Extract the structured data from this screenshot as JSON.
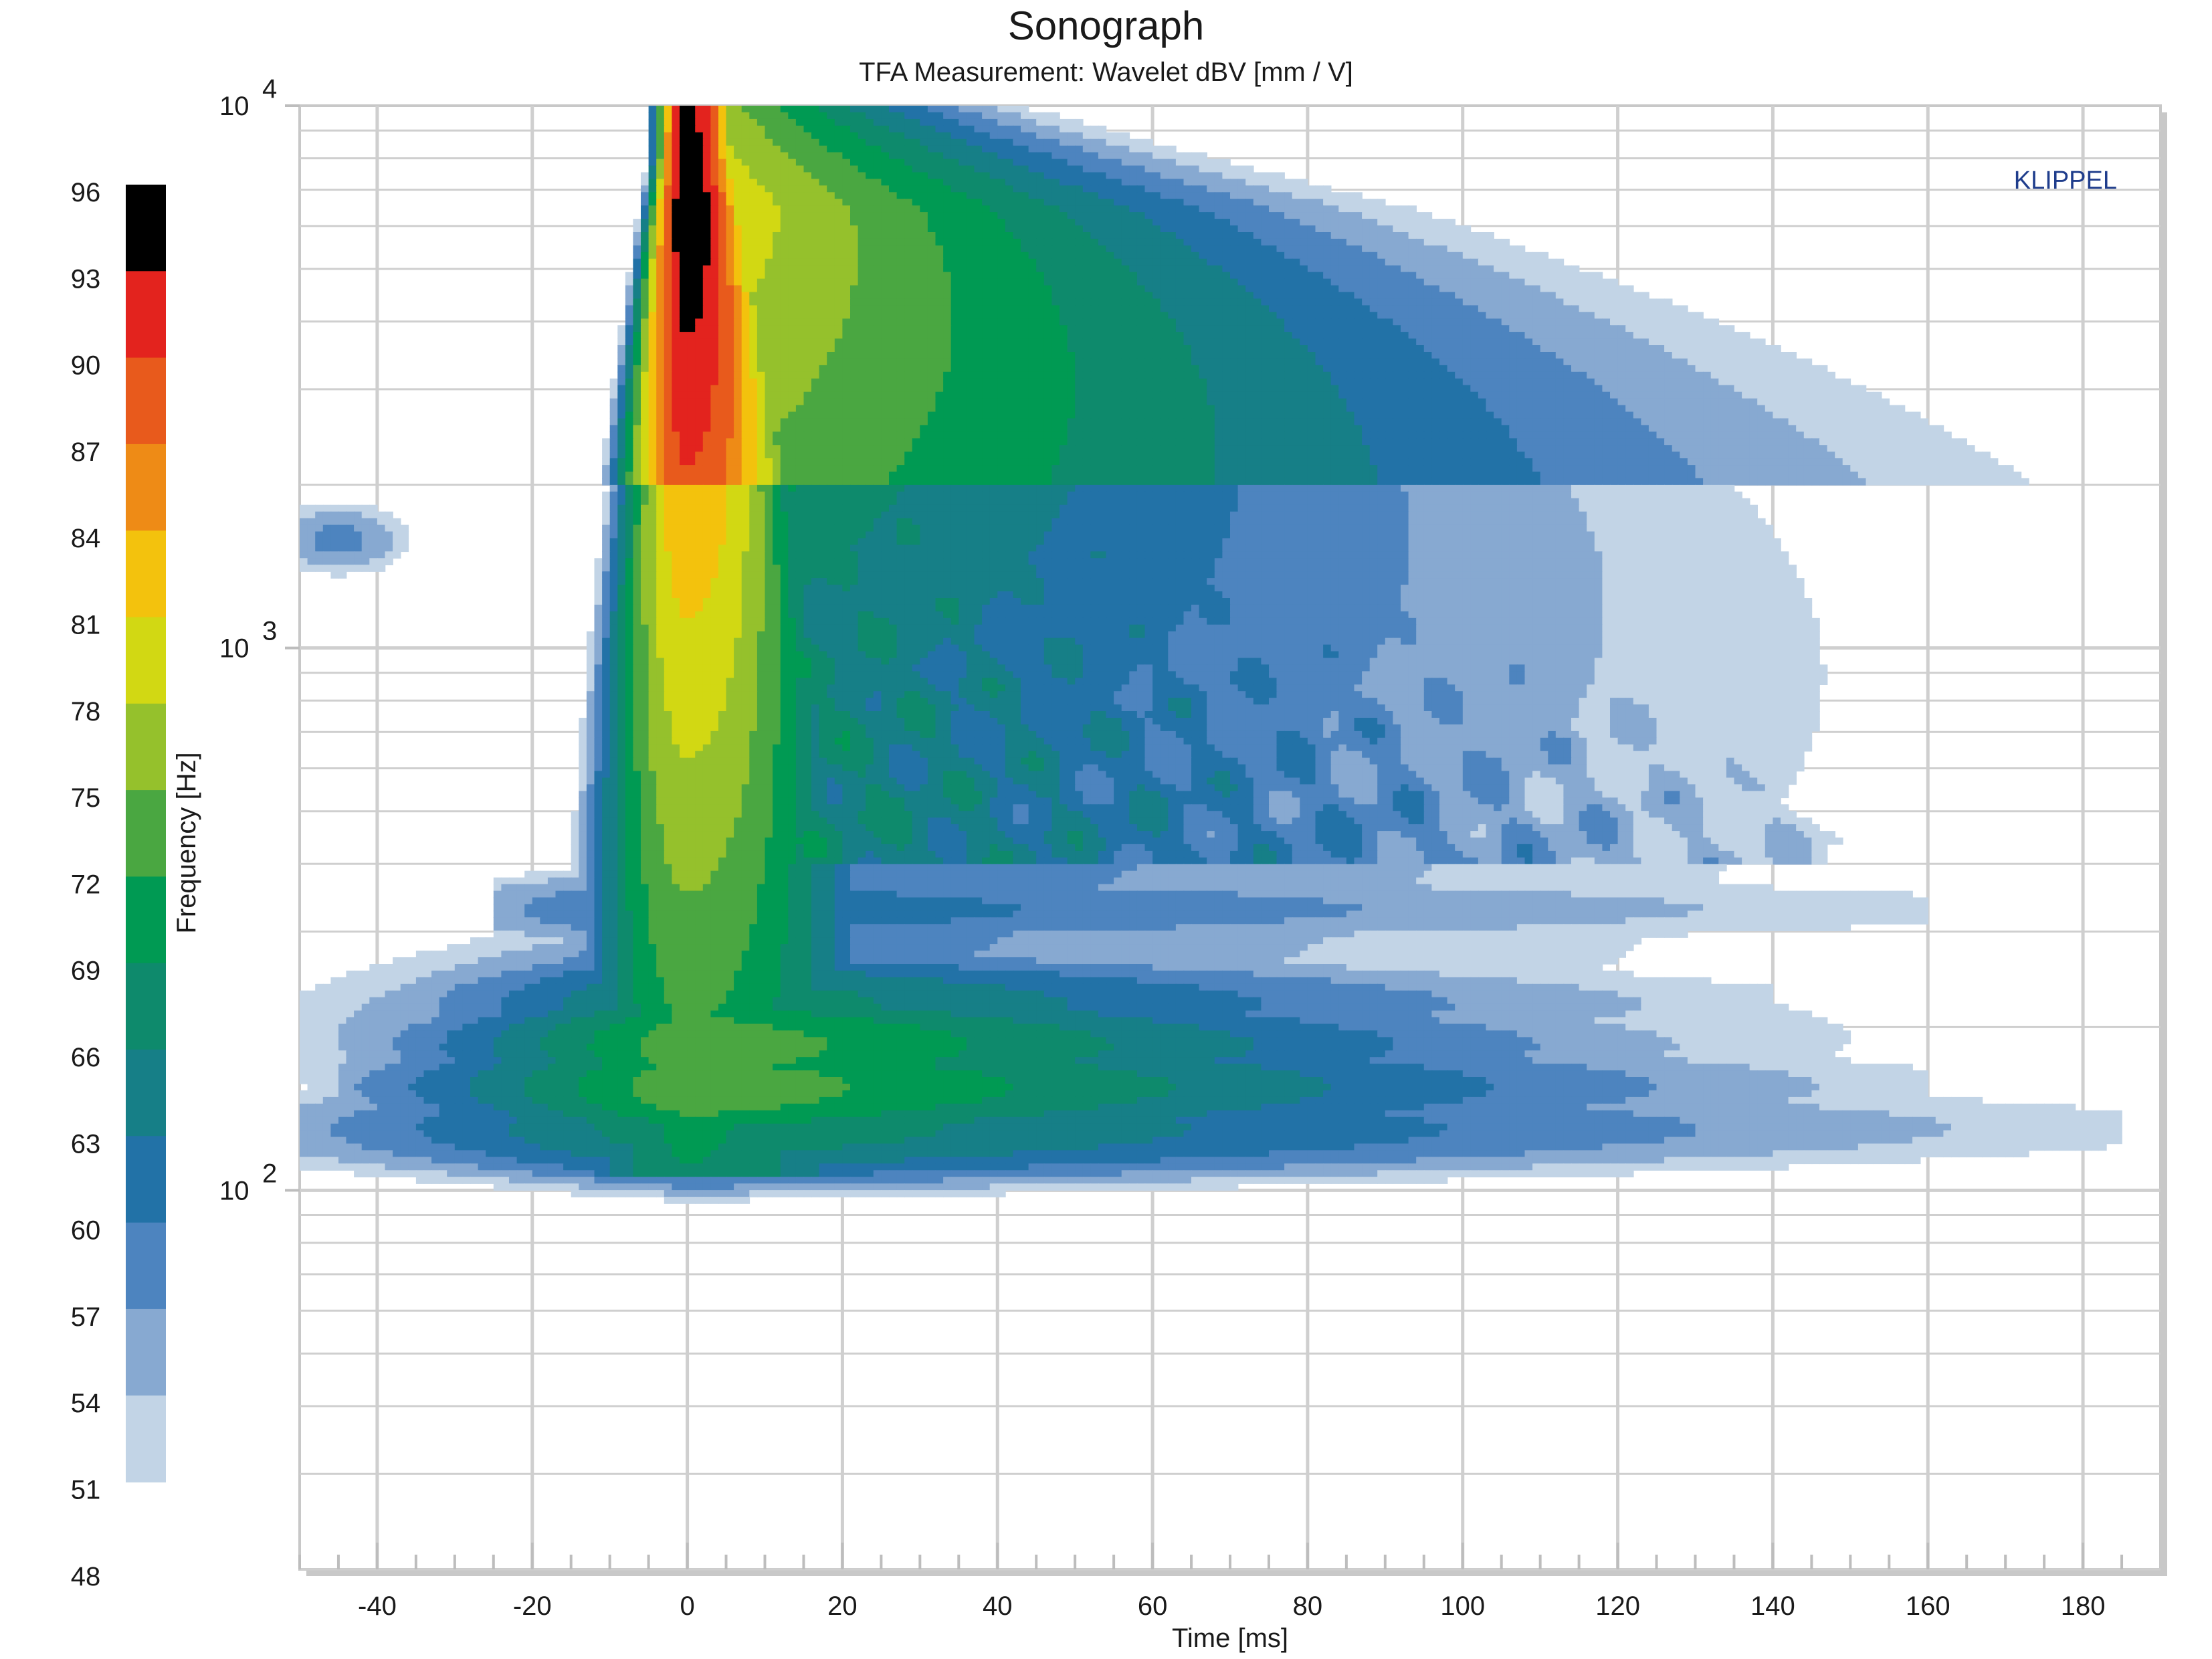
{
  "chart_data": {
    "type": "heatmap",
    "title": "Sonograph",
    "subtitle": "TFA Measurement: Wavelet dBV [mm / V]",
    "xlabel": "Time [ms]",
    "ylabel": "Frequency [Hz]",
    "xlim": [
      -50,
      190
    ],
    "ylim": [
      20,
      10000
    ],
    "y_scale": "log",
    "grid": true,
    "x_ticks": [
      "-40",
      "-20",
      "0",
      "20",
      "40",
      "60",
      "80",
      "100",
      "120",
      "140",
      "160",
      "180"
    ],
    "y_tick_labels": [
      {
        "base": "10",
        "exp": "4",
        "value": 10000
      },
      {
        "base": "10",
        "exp": "3",
        "value": 1000
      },
      {
        "base": "10",
        "exp": "2",
        "value": 100
      }
    ],
    "colorbar": {
      "labels": [
        "96",
        "93",
        "90",
        "87",
        "84",
        "81",
        "78",
        "75",
        "72",
        "69",
        "66",
        "63",
        "60",
        "57",
        "54",
        "51",
        "48"
      ],
      "colors": [
        "#000000",
        "#e3231e",
        "#e85a1c",
        "#ee8b16",
        "#f3c20d",
        "#d2d813",
        "#95c12c",
        "#4aa741",
        "#009a53",
        "#0e8a6c",
        "#167f87",
        "#2272a7",
        "#4d84bf",
        "#87a9d1",
        "#c2d4e6"
      ],
      "placement": "left"
    },
    "ridges": [
      {
        "freq_hz": 130,
        "t_start_ms": -50,
        "t_end_ms": 185,
        "peak_level_db": 69
      },
      {
        "freq_hz": 155,
        "t_start_ms": -45,
        "t_end_ms": 160,
        "peak_level_db": 75
      },
      {
        "freq_hz": 185,
        "t_start_ms": -40,
        "t_end_ms": 140,
        "peak_level_db": 75
      },
      {
        "freq_hz": 220,
        "t_start_ms": -35,
        "t_end_ms": 140,
        "peak_level_db": 69
      },
      {
        "freq_hz": 330,
        "t_start_ms": -25,
        "t_end_ms": 160,
        "peak_level_db": 63
      },
      {
        "freq_hz": 600,
        "t_start_ms": -10,
        "t_end_ms": 110,
        "peak_level_db": 60
      },
      {
        "freq_hz": 900,
        "t_start_ms": -5,
        "t_end_ms": 130,
        "peak_level_db": 57
      },
      {
        "freq_hz": 1600,
        "t_start_ms": -50,
        "t_end_ms": -40,
        "peak_level_db": 57
      }
    ],
    "impulse": {
      "t_ms": 0,
      "f_min_hz": 300,
      "f_max_hz": 10000,
      "peak_level_db": 96,
      "peak_freq_hz": 6500
    }
  },
  "logo": {
    "text": "KLIPPEL",
    "color": "#1f3d8c"
  }
}
